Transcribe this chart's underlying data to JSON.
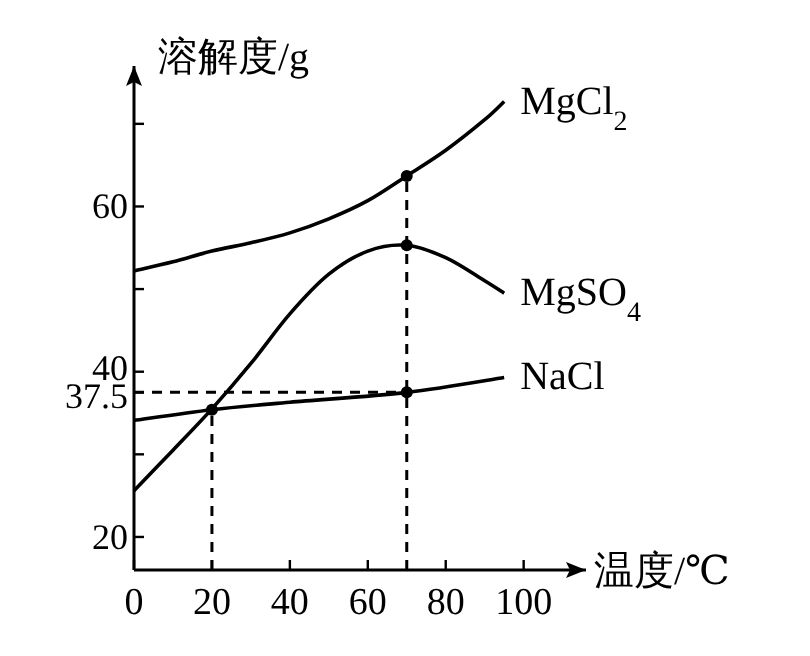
{
  "chart_data": {
    "type": "line",
    "xlabel": "温度/℃",
    "ylabel": "溶解度/g",
    "xlim": [
      0,
      116
    ],
    "ylim": [
      16,
      77
    ],
    "xticks": [
      0,
      20,
      40,
      60,
      80,
      100
    ],
    "yticks": [
      20,
      {
        "value": 30,
        "label": null
      },
      37.5,
      40,
      {
        "value": 50,
        "label": null
      },
      60,
      {
        "value": 70,
        "label": null
      }
    ],
    "series": [
      {
        "name": "MgCl$_{2}$",
        "color": "#000000",
        "x": [
          0,
          10,
          20,
          30,
          40,
          50,
          60,
          70,
          80,
          90,
          95
        ],
        "values": [
          52.2,
          53.3,
          54.6,
          55.6,
          56.8,
          58.5,
          60.7,
          63.7,
          66.8,
          70.5,
          72.7
        ]
      },
      {
        "name": "MgSO$_{4}$",
        "color": "#000000",
        "x": [
          0,
          10,
          20,
          30,
          40,
          50,
          60,
          70,
          80,
          90,
          95
        ],
        "values": [
          25.6,
          30.5,
          35.5,
          41,
          47,
          51.8,
          54.6,
          55.3,
          53.8,
          51,
          49.5
        ]
      },
      {
        "name": "NaCl",
        "color": "#000000",
        "x": [
          0,
          20,
          40,
          70,
          95
        ],
        "values": [
          34.1,
          35.4,
          36.3,
          37.5,
          39.3
        ]
      },
      {
        "type": "scatter",
        "marker": "circle",
        "color": "#000000",
        "x": [
          20,
          70,
          70,
          70
        ],
        "values": [
          35.4,
          63.7,
          55.3,
          37.5
        ]
      }
    ],
    "ref_lines": [
      {
        "axis": "x",
        "value": 20,
        "line_style": "dashed"
      },
      {
        "axis": "x",
        "value": 70,
        "line_style": "dashed"
      },
      {
        "axis": "y",
        "value": 37.5,
        "line_style": "dashed"
      }
    ]
  }
}
